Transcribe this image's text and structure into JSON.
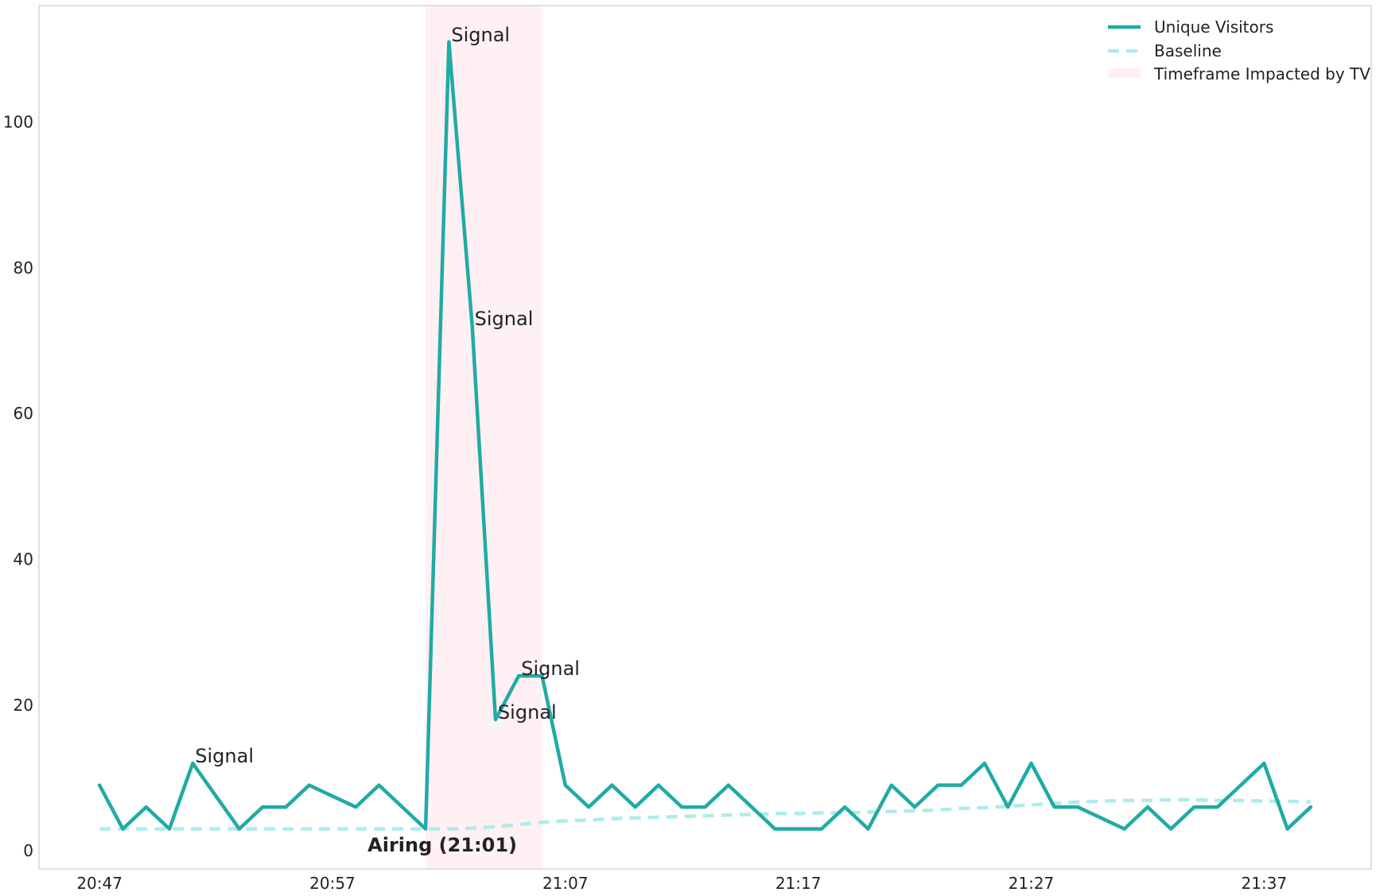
{
  "chart_data": {
    "type": "line",
    "title": "",
    "xlabel": "",
    "ylabel": "",
    "xlim": [
      -2.6,
      54.6
    ],
    "ylim": [
      -2.5,
      116
    ],
    "grid": false,
    "x_tick_labels": [
      {
        "x": 0,
        "label": "20:47"
      },
      {
        "x": 10,
        "label": "20:57"
      },
      {
        "x": 20,
        "label": "21:07"
      },
      {
        "x": 30,
        "label": "21:17"
      },
      {
        "x": 40,
        "label": "21:27"
      },
      {
        "x": 50,
        "label": "21:37"
      }
    ],
    "y_ticks": [
      0,
      20,
      40,
      60,
      80,
      100
    ],
    "x": [
      0,
      1,
      2,
      3,
      4,
      5,
      6,
      7,
      8,
      9,
      10,
      11,
      12,
      13,
      14,
      15,
      16,
      17,
      18,
      19,
      20,
      21,
      22,
      23,
      24,
      25,
      26,
      27,
      28,
      29,
      30,
      31,
      32,
      33,
      34,
      35,
      36,
      37,
      38,
      39,
      40,
      41,
      42,
      43,
      44,
      45,
      46,
      47,
      48,
      49,
      50,
      51,
      52
    ],
    "series": [
      {
        "name": "Unique Visitors",
        "color": "#20aba5",
        "style": "solid",
        "values": [
          9,
          3,
          6,
          3,
          12,
          7.5,
          3,
          6,
          6,
          9,
          7.5,
          6,
          9,
          6,
          3,
          111,
          72,
          18,
          24,
          24,
          9,
          6,
          9,
          6,
          9,
          6,
          6,
          9,
          6,
          3,
          3,
          3,
          6,
          3,
          9,
          6,
          9,
          9,
          12,
          6,
          12,
          6,
          6,
          4.5,
          3,
          6,
          3,
          6,
          6,
          9,
          12,
          3,
          6
        ]
      },
      {
        "name": "Baseline",
        "color": "#b0ebeb",
        "style": "dashed",
        "values": [
          3,
          3,
          3,
          3,
          3,
          3,
          3,
          3,
          3,
          3,
          3,
          3,
          3,
          3,
          3,
          3,
          3.1,
          3.3,
          3.6,
          3.9,
          4.1,
          4.2,
          4.4,
          4.5,
          4.6,
          4.7,
          4.8,
          4.9,
          5.0,
          5.1,
          5.1,
          5.2,
          5.2,
          5.3,
          5.4,
          5.5,
          5.6,
          5.8,
          5.9,
          6.1,
          6.3,
          6.5,
          6.7,
          6.8,
          6.9,
          6.9,
          7.0,
          7.0,
          6.9,
          6.9,
          6.8,
          6.8,
          6.7
        ]
      }
    ],
    "shaded_region": {
      "name": "Timeframe Impacted by TV",
      "x_start": 14,
      "x_end": 19,
      "color": "#fff0f3"
    },
    "annotations": [
      {
        "text": "Signal",
        "x": 4,
        "y": 12
      },
      {
        "text": "Signal",
        "x": 15,
        "y": 111
      },
      {
        "text": "Signal",
        "x": 16,
        "y": 72
      },
      {
        "text": "Signal",
        "x": 17,
        "y": 18
      },
      {
        "text": "Signal",
        "x": 18,
        "y": 24
      }
    ],
    "airing_label": {
      "text": "Airing (21:01)",
      "x": 14,
      "y": 0
    },
    "legend": {
      "position": "top-right",
      "entries": [
        "Unique Visitors",
        "Baseline",
        "Timeframe Impacted by TV"
      ]
    }
  }
}
